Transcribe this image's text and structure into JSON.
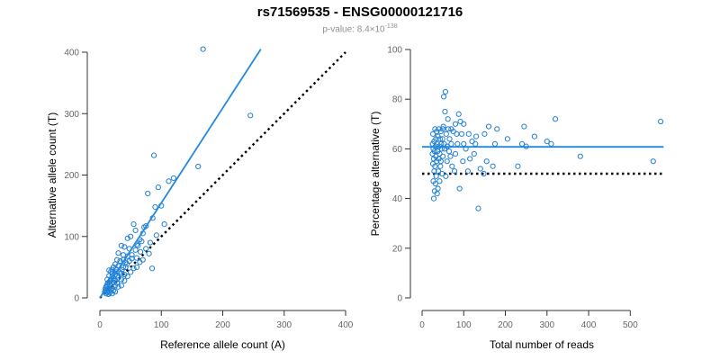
{
  "title": "rs71569535 - ENSG00000121716",
  "subtitle": {
    "prefix": "p-value: 8.4×10",
    "exponent": "-138"
  },
  "colors": {
    "points": "#1f7fd4",
    "fit": "#2389e0",
    "reference": "#000000"
  },
  "chart_data": [
    {
      "type": "scatter",
      "xlabel": "Reference allele count (A)",
      "ylabel": "Alternative allele count (T)",
      "xlim": [
        0,
        400
      ],
      "ylim": [
        0,
        400
      ],
      "x_ticks": [
        0,
        100,
        200,
        300,
        400
      ],
      "y_ticks": [
        0,
        100,
        200,
        300,
        400
      ],
      "fit_line": {
        "x": [
          0,
          262
        ],
        "y": [
          0,
          405
        ]
      },
      "reference_line": {
        "x": [
          0,
          400
        ],
        "y": [
          0,
          400
        ],
        "style": "dotted"
      },
      "points": [
        [
          168,
          405
        ],
        [
          245,
          297
        ],
        [
          88,
          232
        ],
        [
          160,
          214
        ],
        [
          120,
          195
        ],
        [
          112,
          190
        ],
        [
          95,
          180
        ],
        [
          100,
          150
        ],
        [
          90,
          148
        ],
        [
          78,
          170
        ],
        [
          105,
          120
        ],
        [
          75,
          117
        ],
        [
          72,
          115
        ],
        [
          55,
          120
        ],
        [
          58,
          110
        ],
        [
          50,
          100
        ],
        [
          45,
          97
        ],
        [
          65,
          95
        ],
        [
          68,
          92
        ],
        [
          35,
          85
        ],
        [
          40,
          83
        ],
        [
          48,
          80
        ],
        [
          30,
          73
        ],
        [
          38,
          70
        ],
        [
          45,
          68
        ],
        [
          52,
          70
        ],
        [
          60,
          65
        ],
        [
          28,
          62
        ],
        [
          33,
          60
        ],
        [
          42,
          58
        ],
        [
          25,
          55
        ],
        [
          30,
          52
        ],
        [
          38,
          50
        ],
        [
          22,
          50
        ],
        [
          55,
          48
        ],
        [
          85,
          48
        ],
        [
          20,
          46
        ],
        [
          15,
          45
        ],
        [
          18,
          43
        ],
        [
          27,
          42
        ],
        [
          35,
          40
        ],
        [
          40,
          38
        ],
        [
          25,
          38
        ],
        [
          15,
          36
        ],
        [
          20,
          35
        ],
        [
          30,
          33
        ],
        [
          12,
          30
        ],
        [
          18,
          30
        ],
        [
          25,
          28
        ],
        [
          35,
          30
        ],
        [
          15,
          26
        ],
        [
          22,
          25
        ],
        [
          28,
          24
        ],
        [
          12,
          22
        ],
        [
          18,
          20
        ],
        [
          25,
          20
        ],
        [
          10,
          18
        ],
        [
          15,
          17
        ],
        [
          20,
          16
        ],
        [
          30,
          18
        ],
        [
          12,
          14
        ],
        [
          18,
          13
        ],
        [
          10,
          12
        ],
        [
          14,
          11
        ],
        [
          22,
          12
        ],
        [
          8,
          10
        ],
        [
          12,
          9
        ],
        [
          16,
          8
        ],
        [
          25,
          10
        ],
        [
          10,
          7
        ],
        [
          14,
          6
        ],
        [
          20,
          7
        ],
        [
          35,
          20
        ],
        [
          40,
          28
        ],
        [
          45,
          35
        ],
        [
          50,
          42
        ],
        [
          60,
          50
        ],
        [
          65,
          58
        ],
        [
          70,
          62
        ],
        [
          80,
          72
        ],
        [
          75,
          80
        ],
        [
          58,
          78
        ],
        [
          62,
          85
        ],
        [
          48,
          60
        ],
        [
          42,
          50
        ],
        [
          32,
          42
        ],
        [
          28,
          36
        ],
        [
          22,
          32
        ],
        [
          17,
          28
        ],
        [
          13,
          24
        ],
        [
          11,
          19
        ],
        [
          9,
          15
        ],
        [
          16,
          22
        ],
        [
          24,
          30
        ],
        [
          36,
          46
        ],
        [
          44,
          55
        ],
        [
          52,
          64
        ],
        [
          66,
          75
        ],
        [
          82,
          90
        ],
        [
          92,
          102
        ],
        [
          70,
          105
        ],
        [
          86,
          130
        ],
        [
          60,
          87
        ],
        [
          38,
          62
        ],
        [
          26,
          47
        ],
        [
          20,
          40
        ]
      ]
    },
    {
      "type": "scatter",
      "xlabel": "Total number of reads",
      "ylabel": "Percentage alternative (T)",
      "xlim": [
        0,
        575
      ],
      "ylim": [
        0,
        100
      ],
      "x_ticks": [
        0,
        100,
        200,
        300,
        400,
        500
      ],
      "y_ticks": [
        0,
        20,
        40,
        60,
        80,
        100
      ],
      "fit_line": {
        "x": [
          0,
          580
        ],
        "y": [
          60.8,
          60.8
        ]
      },
      "reference_line": {
        "x": [
          0,
          580
        ],
        "y": [
          50,
          50
        ],
        "style": "dotted"
      },
      "points": [
        [
          573,
          71
        ],
        [
          555,
          55
        ],
        [
          380,
          57
        ],
        [
          320,
          72
        ],
        [
          310,
          62
        ],
        [
          300,
          63
        ],
        [
          270,
          65
        ],
        [
          250,
          61
        ],
        [
          245,
          69
        ],
        [
          240,
          62
        ],
        [
          230,
          53
        ],
        [
          205,
          64
        ],
        [
          180,
          68
        ],
        [
          175,
          62
        ],
        [
          170,
          53
        ],
        [
          160,
          69
        ],
        [
          155,
          55
        ],
        [
          150,
          66
        ],
        [
          148,
          50
        ],
        [
          140,
          52
        ],
        [
          135,
          36
        ],
        [
          130,
          65
        ],
        [
          128,
          62
        ],
        [
          125,
          58
        ],
        [
          120,
          63
        ],
        [
          115,
          56
        ],
        [
          112,
          66
        ],
        [
          110,
          51
        ],
        [
          105,
          60
        ],
        [
          100,
          62
        ],
        [
          100,
          70
        ],
        [
          98,
          55
        ],
        [
          95,
          66
        ],
        [
          92,
          71
        ],
        [
          90,
          44
        ],
        [
          88,
          74
        ],
        [
          85,
          62
        ],
        [
          83,
          66
        ],
        [
          80,
          58
        ],
        [
          80,
          70
        ],
        [
          78,
          51
        ],
        [
          75,
          67
        ],
        [
          72,
          53
        ],
        [
          70,
          62
        ],
        [
          70,
          68
        ],
        [
          68,
          57
        ],
        [
          66,
          64
        ],
        [
          65,
          59
        ],
        [
          63,
          68
        ],
        [
          62,
          72
        ],
        [
          60,
          55
        ],
        [
          60,
          61
        ],
        [
          58,
          66
        ],
        [
          57,
          49
        ],
        [
          56,
          83
        ],
        [
          55,
          75
        ],
        [
          54,
          60
        ],
        [
          53,
          62
        ],
        [
          52,
          81
        ],
        [
          51,
          69
        ],
        [
          50,
          68
        ],
        [
          50,
          57
        ],
        [
          49,
          64
        ],
        [
          48,
          50
        ],
        [
          47,
          60
        ],
        [
          46,
          62
        ],
        [
          45,
          67
        ],
        [
          45,
          55
        ],
        [
          44,
          53
        ],
        [
          43,
          64
        ],
        [
          42,
          58
        ],
        [
          42,
          47
        ],
        [
          41,
          61
        ],
        [
          40,
          68
        ],
        [
          40,
          56
        ],
        [
          39,
          51
        ],
        [
          38,
          65
        ],
        [
          38,
          44
        ],
        [
          37,
          59
        ],
        [
          36,
          62
        ],
        [
          36,
          42
        ],
        [
          35,
          67
        ],
        [
          35,
          55
        ],
        [
          34,
          49
        ],
        [
          33,
          64
        ],
        [
          33,
          57
        ],
        [
          32,
          61
        ],
        [
          32,
          46
        ],
        [
          31,
          68
        ],
        [
          31,
          53
        ],
        [
          30,
          59
        ],
        [
          30,
          43
        ],
        [
          29,
          63
        ],
        [
          29,
          51
        ],
        [
          28,
          56
        ],
        [
          28,
          40
        ],
        [
          27,
          60
        ],
        [
          27,
          47
        ],
        [
          26,
          66
        ],
        [
          26,
          54
        ],
        [
          25,
          58
        ],
        [
          25,
          62
        ]
      ]
    }
  ]
}
